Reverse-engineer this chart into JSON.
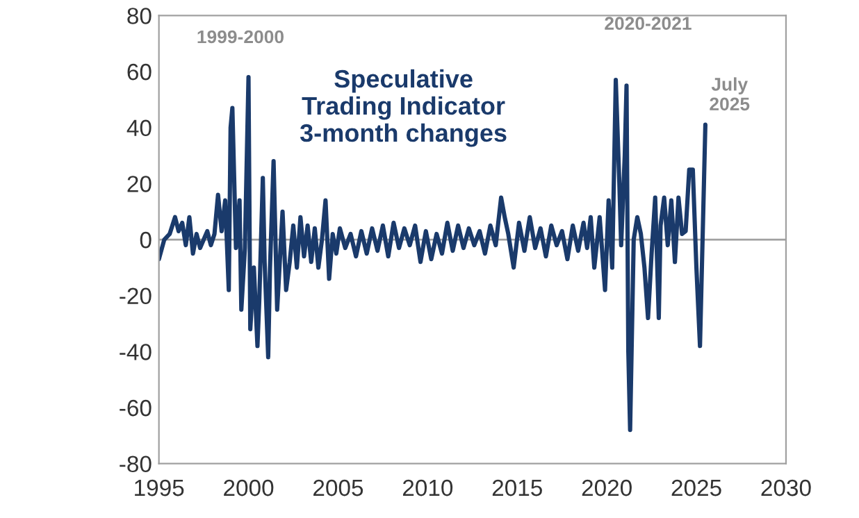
{
  "chart_data": {
    "type": "line",
    "title": "Speculative\nTrading Indicator\n3-month changes",
    "annotations": [
      "1999-2000",
      "2020-2021",
      "July\n2025"
    ],
    "series": [
      {
        "color": "#1a3a6b",
        "x": [
          1995.0,
          1995.3,
          1995.6,
          1995.9,
          1996.1,
          1996.3,
          1996.5,
          1996.7,
          1996.9,
          1997.1,
          1997.3,
          1997.5,
          1997.7,
          1997.9,
          1998.1,
          1998.3,
          1998.5,
          1998.7,
          1998.9,
          1999.0,
          1999.1,
          1999.3,
          1999.5,
          1999.6,
          1999.8,
          2000.0,
          2000.1,
          2000.3,
          2000.5,
          2000.6,
          2000.8,
          2000.9,
          2001.1,
          2001.2,
          2001.4,
          2001.6,
          2001.9,
          2002.1,
          2002.3,
          2002.5,
          2002.7,
          2002.9,
          2003.1,
          2003.3,
          2003.5,
          2003.7,
          2003.9,
          2004.1,
          2004.3,
          2004.5,
          2004.7,
          2004.9,
          2005.1,
          2005.4,
          2005.7,
          2006.0,
          2006.3,
          2006.6,
          2006.9,
          2007.2,
          2007.5,
          2007.8,
          2008.1,
          2008.4,
          2008.7,
          2009.0,
          2009.3,
          2009.6,
          2009.9,
          2010.2,
          2010.5,
          2010.8,
          2011.1,
          2011.4,
          2011.7,
          2012.0,
          2012.3,
          2012.6,
          2012.9,
          2013.2,
          2013.5,
          2013.8,
          2014.1,
          2014.3,
          2014.5,
          2014.8,
          2015.1,
          2015.4,
          2015.7,
          2016.0,
          2016.3,
          2016.6,
          2016.9,
          2017.2,
          2017.5,
          2017.8,
          2018.1,
          2018.4,
          2018.7,
          2018.9,
          2019.1,
          2019.3,
          2019.6,
          2019.9,
          2020.1,
          2020.3,
          2020.5,
          2020.7,
          2020.8,
          2021.0,
          2021.1,
          2021.2,
          2021.3,
          2021.5,
          2021.7,
          2021.9,
          2022.1,
          2022.3,
          2022.5,
          2022.7,
          2022.9,
          2023.0,
          2023.2,
          2023.4,
          2023.6,
          2023.8,
          2024.0,
          2024.2,
          2024.4,
          2024.6,
          2024.8,
          2025.0,
          2025.2,
          2025.5
        ],
        "values": [
          -7,
          0,
          2,
          8,
          3,
          6,
          -2,
          8,
          -5,
          2,
          -3,
          0,
          3,
          -2,
          2,
          16,
          3,
          14,
          -18,
          40,
          47,
          -3,
          14,
          -25,
          -3,
          58,
          -32,
          -10,
          -38,
          -22,
          22,
          -8,
          -42,
          -10,
          28,
          -25,
          10,
          -18,
          -8,
          5,
          -10,
          8,
          -6,
          5,
          -8,
          4,
          -10,
          0,
          14,
          -14,
          2,
          -5,
          4,
          -3,
          2,
          -6,
          3,
          -5,
          4,
          -4,
          5,
          -6,
          6,
          -3,
          4,
          -2,
          5,
          -8,
          3,
          -7,
          2,
          -5,
          6,
          -4,
          5,
          -3,
          4,
          -2,
          3,
          -5,
          5,
          -2,
          15,
          8,
          2,
          -10,
          6,
          -4,
          8,
          -3,
          4,
          -6,
          5,
          -2,
          3,
          -7,
          5,
          -4,
          6,
          -3,
          8,
          -10,
          8,
          -18,
          14,
          -10,
          57,
          20,
          -2,
          30,
          55,
          -40,
          -68,
          0,
          8,
          2,
          -10,
          -28,
          -5,
          15,
          -28,
          5,
          15,
          -2,
          14,
          -8,
          15,
          2,
          3,
          25,
          25,
          -10,
          -38,
          41
        ]
      }
    ],
    "xlim": [
      1995,
      2030
    ],
    "ylim": [
      -80,
      80
    ],
    "xticks": [
      1995,
      2000,
      2005,
      2010,
      2015,
      2020,
      2025,
      2030
    ],
    "yticks": [
      -80,
      -60,
      -40,
      -20,
      0,
      20,
      40,
      60,
      80
    ],
    "ref_lines": [
      {
        "axis": "y",
        "value": 0,
        "color": "#a0a0a0"
      }
    ],
    "grid": false,
    "legend": false,
    "line_style": "solid",
    "marker": "none"
  }
}
